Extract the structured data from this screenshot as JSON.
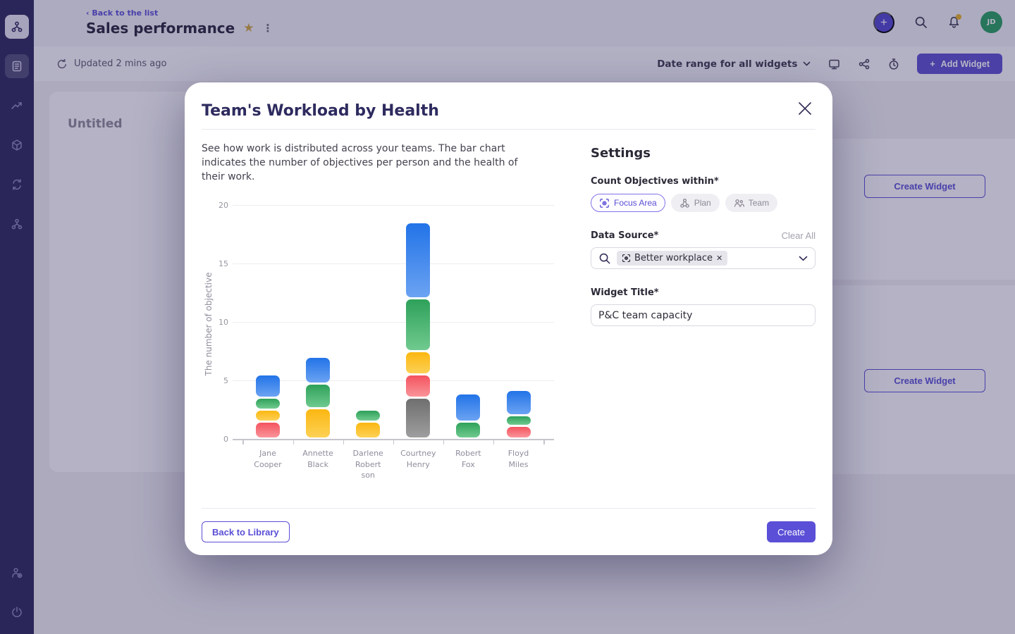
{
  "icons": {
    "plus": "+",
    "star": "★",
    "kebab": "⋮",
    "chip_remove": "✕",
    "back_arrow": "‹"
  },
  "colors": {
    "accent": "#5a4fd6",
    "sidebar_bg": "#2b285b",
    "avatar_bg": "#27a05f",
    "notif_dot": "#e8b225"
  },
  "topbar": {
    "back_label": "Back to the list",
    "title": "Sales performance",
    "avatar_initials": "JD"
  },
  "toolbar": {
    "updated_text": "Updated 2 mins ago",
    "date_range_label": "Date range for all widgets",
    "add_widget_label": "Add Widget"
  },
  "background": {
    "untitled_card_title": "Untitled",
    "create_widget_label_1": "Create Widget",
    "create_widget_label_2": "Create Widget"
  },
  "modal": {
    "title": "Team's Workload by Health",
    "description": "See how work is distributed across your teams. The bar chart indicates the number of objectives per person and the health of their work.",
    "settings": {
      "heading": "Settings",
      "count_objectives_label": "Count Objectives within*",
      "scope_options": [
        {
          "label": "Focus Area",
          "selected": true
        },
        {
          "label": "Plan",
          "selected": false
        },
        {
          "label": "Team",
          "selected": false
        }
      ],
      "data_source_label": "Data Source*",
      "clear_all_label": "Clear All",
      "data_source_chip": "Better workplace",
      "widget_title_label": "Widget Title*",
      "widget_title_value": "P&C team capacity"
    },
    "footer": {
      "back_label": "Back to Library",
      "create_label": "Create"
    }
  },
  "chart_data": {
    "type": "stacked-bar",
    "title": "",
    "xlabel": "",
    "ylabel": "The number of objective",
    "ylim": [
      0,
      20
    ],
    "yticks": [
      0,
      5,
      10,
      15,
      20
    ],
    "grid": "horizontal",
    "legend": "none",
    "categories": [
      "Jane Cooper",
      "Annette Black",
      "Darlene Robertson",
      "Courtney Henry",
      "Robert Fox",
      "Floyd Miles"
    ],
    "category_label_lines": [
      [
        "Jane",
        "Cooper"
      ],
      [
        "Annette",
        "Black"
      ],
      [
        "Darlene",
        "Robert",
        "son"
      ],
      [
        "Courtney",
        "Henry"
      ],
      [
        "Robert",
        "Fox"
      ],
      [
        "Floyd",
        "Miles"
      ]
    ],
    "colors": {
      "blue": [
        "#2273e8",
        "#6ba3f2"
      ],
      "green": [
        "#2ea15a",
        "#70ca8f"
      ],
      "yellow": [
        "#fbb712",
        "#fdd155"
      ],
      "red": [
        "#f4535e",
        "#fa949a"
      ],
      "gray": [
        "#6f6f6f",
        "#9e9e9e"
      ]
    },
    "bars": [
      {
        "name": "Jane Cooper",
        "total": 5.5,
        "segments": [
          {
            "color": "red",
            "value": 1.5
          },
          {
            "color": "yellow",
            "value": 1
          },
          {
            "color": "green",
            "value": 1
          },
          {
            "color": "blue",
            "value": 2
          }
        ]
      },
      {
        "name": "Annette Black",
        "total": 7,
        "segments": [
          {
            "color": "yellow",
            "value": 2.6
          },
          {
            "color": "green",
            "value": 2.1
          },
          {
            "color": "blue",
            "value": 2.3
          }
        ]
      },
      {
        "name": "Darlene Robertson",
        "total": 2.5,
        "segments": [
          {
            "color": "yellow",
            "value": 1.5
          },
          {
            "color": "green",
            "value": 1
          }
        ]
      },
      {
        "name": "Courtney Henry",
        "total": 18.5,
        "segments": [
          {
            "color": "gray",
            "value": 3.5
          },
          {
            "color": "red",
            "value": 2
          },
          {
            "color": "yellow",
            "value": 2
          },
          {
            "color": "green",
            "value": 4.5
          },
          {
            "color": "blue",
            "value": 6.5
          }
        ]
      },
      {
        "name": "Robert Fox",
        "total": 3.9,
        "segments": [
          {
            "color": "green",
            "value": 1.5
          },
          {
            "color": "blue",
            "value": 2.4
          }
        ]
      },
      {
        "name": "Floyd Miles",
        "total": 4.2,
        "segments": [
          {
            "color": "red",
            "value": 1.1
          },
          {
            "color": "green",
            "value": 0.9
          },
          {
            "color": "blue",
            "value": 2.2
          }
        ]
      }
    ]
  }
}
